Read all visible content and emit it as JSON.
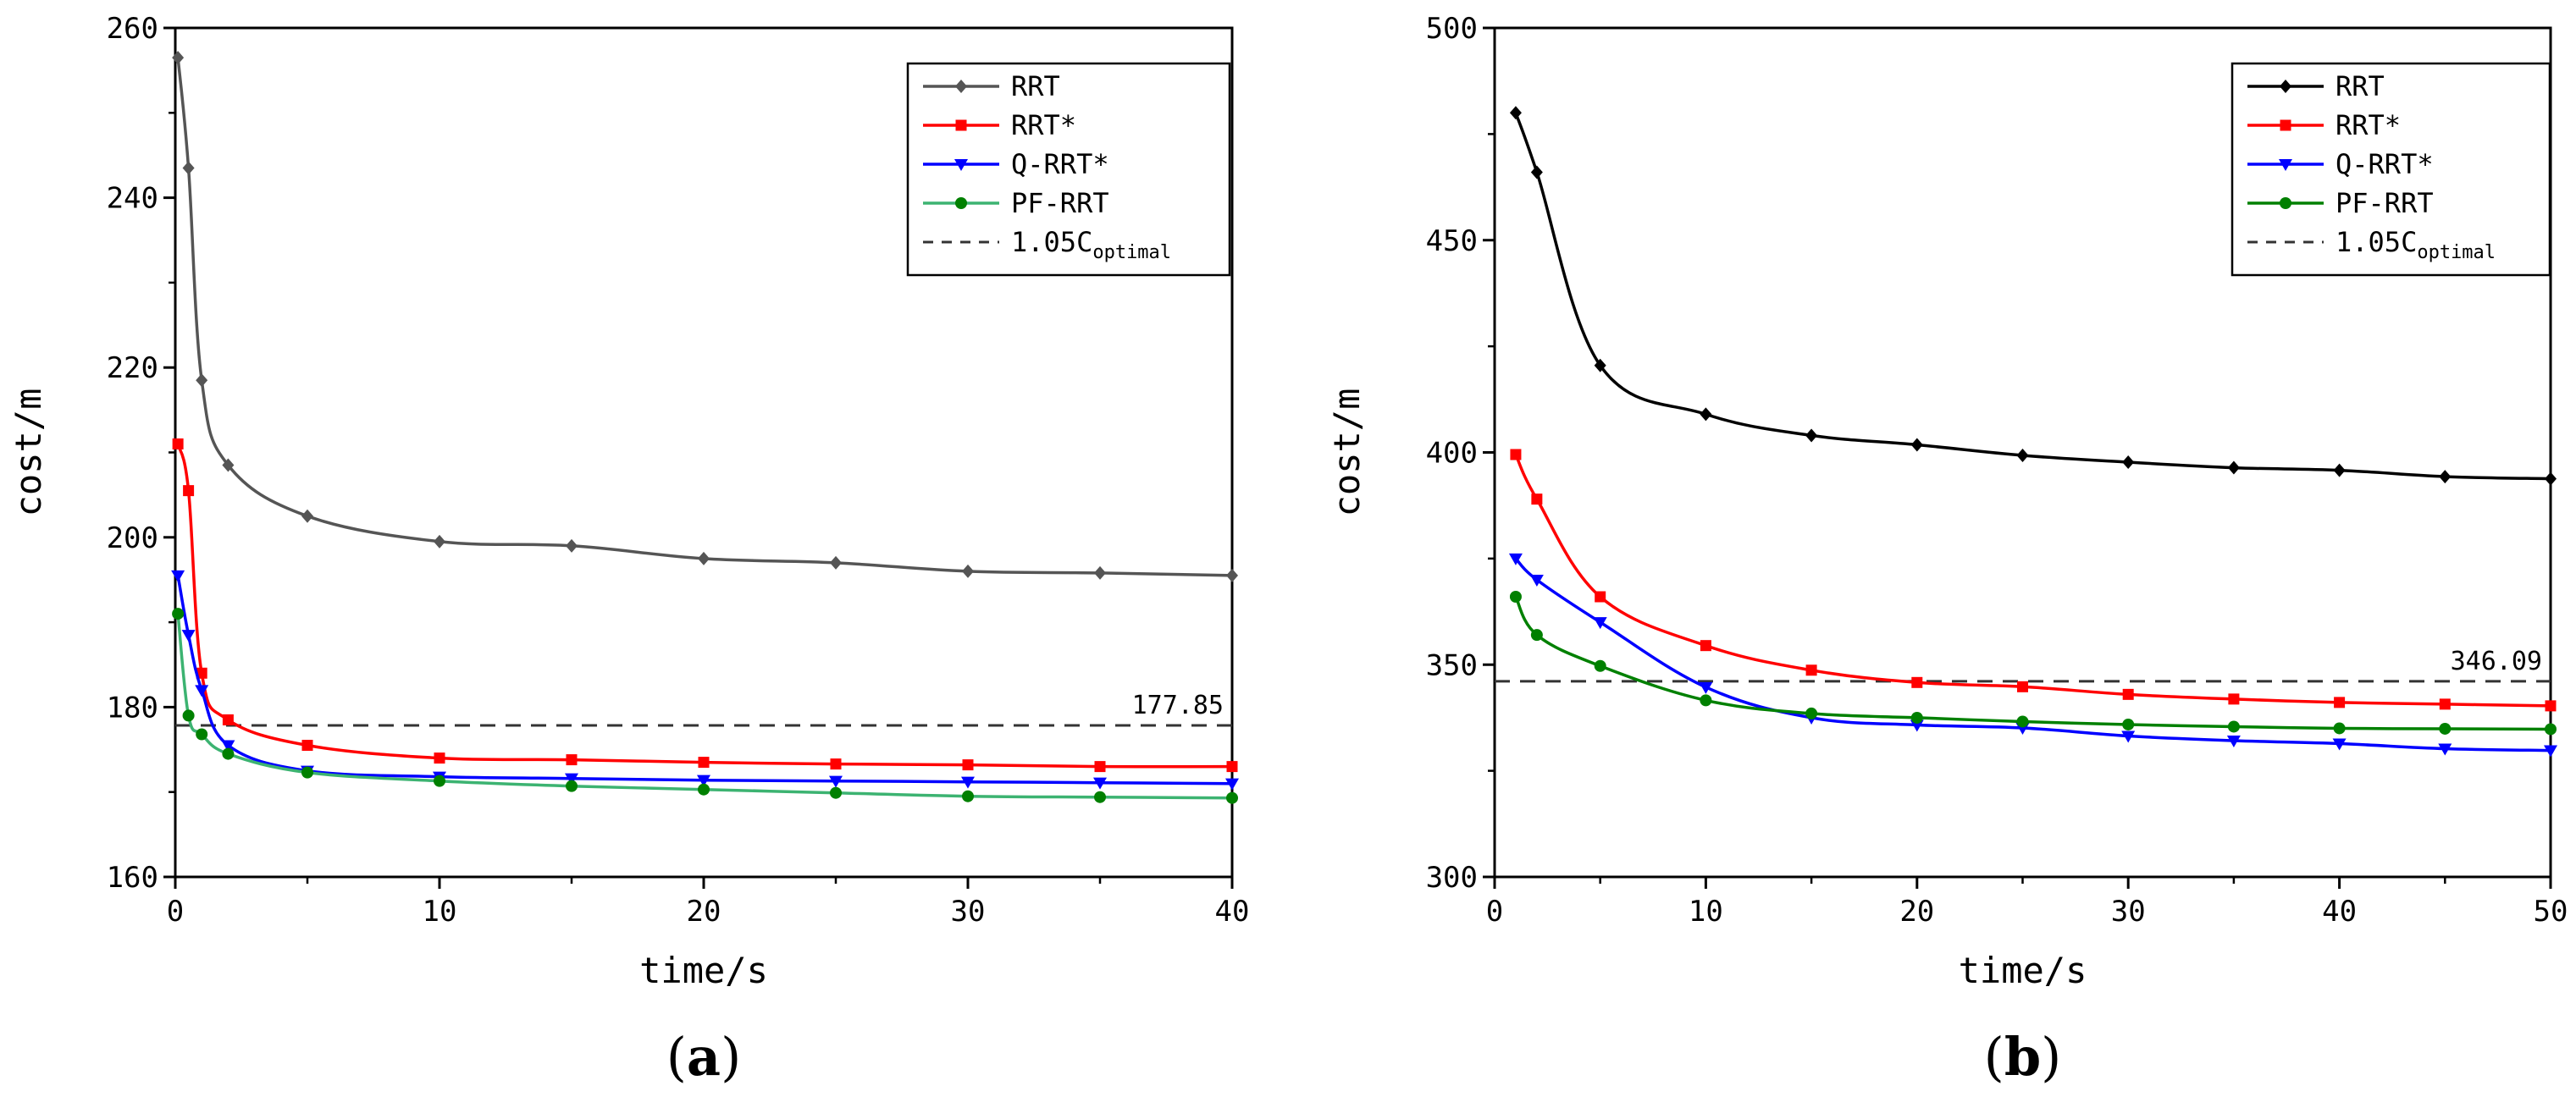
{
  "chart_data": [
    {
      "type": "line",
      "panel_label": "(a)",
      "xlabel": "time/s",
      "ylabel": "cost/m",
      "xlim": [
        0,
        40
      ],
      "ylim": [
        160,
        260
      ],
      "xticks": [
        0,
        10,
        20,
        30,
        40
      ],
      "yticks": [
        160,
        180,
        200,
        220,
        240,
        260
      ],
      "legend_position": "top-right",
      "reference_line": {
        "name": "1.05C",
        "subscript": "optimal",
        "y": 177.85,
        "label": "177.85",
        "color": "#333333"
      },
      "series": [
        {
          "name": "RRT",
          "color": "#555555",
          "marker": "diamond",
          "x": [
            0.1,
            0.5,
            1,
            2,
            5,
            10,
            15,
            20,
            25,
            30,
            35,
            40
          ],
          "y": [
            256.5,
            243.5,
            218.5,
            208.5,
            202.5,
            199.5,
            199.0,
            197.5,
            197.0,
            196.0,
            195.8,
            195.5
          ]
        },
        {
          "name": "RRT*",
          "color": "#ff0000",
          "marker": "square",
          "x": [
            0.1,
            0.5,
            1,
            2,
            5,
            10,
            15,
            20,
            25,
            30,
            35,
            40
          ],
          "y": [
            211,
            205.5,
            184,
            178.5,
            175.5,
            174,
            173.8,
            173.5,
            173.3,
            173.2,
            173.0,
            173.0
          ]
        },
        {
          "name": "Q-RRT*",
          "color": "#0000ff",
          "marker": "triangle-down",
          "x": [
            0.1,
            0.5,
            1,
            2,
            5,
            10,
            15,
            20,
            25,
            30,
            35,
            40
          ],
          "y": [
            195.5,
            188.5,
            182,
            175.5,
            172.5,
            171.8,
            171.6,
            171.4,
            171.3,
            171.2,
            171.1,
            171.0
          ]
        },
        {
          "name": "PF-RRT",
          "color": "#008000",
          "marker": "circle",
          "line_color": "#3cb371",
          "x": [
            0.1,
            0.5,
            1,
            2,
            5,
            10,
            15,
            20,
            25,
            30,
            35,
            40
          ],
          "y": [
            191,
            179,
            176.8,
            174.5,
            172.3,
            171.3,
            170.7,
            170.3,
            169.9,
            169.5,
            169.4,
            169.3
          ]
        }
      ]
    },
    {
      "type": "line",
      "panel_label": "(b)",
      "xlabel": "time/s",
      "ylabel": "cost/m",
      "xlim": [
        0,
        50
      ],
      "ylim": [
        300,
        500
      ],
      "xticks": [
        0,
        10,
        20,
        30,
        40,
        50
      ],
      "yticks": [
        300,
        350,
        400,
        450,
        500
      ],
      "legend_position": "top-right",
      "reference_line": {
        "name": "1.05C",
        "subscript": "optimal",
        "y": 346.09,
        "label": "346.09",
        "color": "#333333"
      },
      "series": [
        {
          "name": "RRT",
          "color": "#000000",
          "marker": "diamond",
          "x": [
            1,
            2,
            5,
            10,
            15,
            20,
            25,
            30,
            35,
            40,
            45,
            50
          ],
          "y": [
            480,
            466,
            420.5,
            409,
            404,
            401.8,
            399.3,
            397.7,
            396.4,
            395.8,
            394.3,
            393.8
          ]
        },
        {
          "name": "RRT*",
          "color": "#ff0000",
          "marker": "square",
          "x": [
            1,
            2,
            5,
            10,
            15,
            20,
            25,
            30,
            35,
            40,
            45,
            50
          ],
          "y": [
            399.5,
            389,
            366,
            354.5,
            348.7,
            345.8,
            344.8,
            343,
            341.9,
            341.1,
            340.7,
            340.3
          ]
        },
        {
          "name": "Q-RRT*",
          "color": "#0000ff",
          "marker": "triangle-down",
          "x": [
            1,
            2,
            5,
            10,
            15,
            20,
            25,
            30,
            35,
            40,
            45,
            50
          ],
          "y": [
            375,
            370,
            360,
            344.7,
            337.5,
            335.8,
            335.1,
            333.2,
            332.1,
            331.4,
            330.2,
            329.8
          ]
        },
        {
          "name": "PF-RRT",
          "color": "#008000",
          "marker": "circle",
          "x": [
            1,
            2,
            5,
            10,
            15,
            20,
            25,
            30,
            35,
            40,
            45,
            50
          ],
          "y": [
            366,
            357,
            349.7,
            341.6,
            338.5,
            337.5,
            336.6,
            335.9,
            335.4,
            335.0,
            334.9,
            334.8
          ]
        }
      ]
    }
  ]
}
